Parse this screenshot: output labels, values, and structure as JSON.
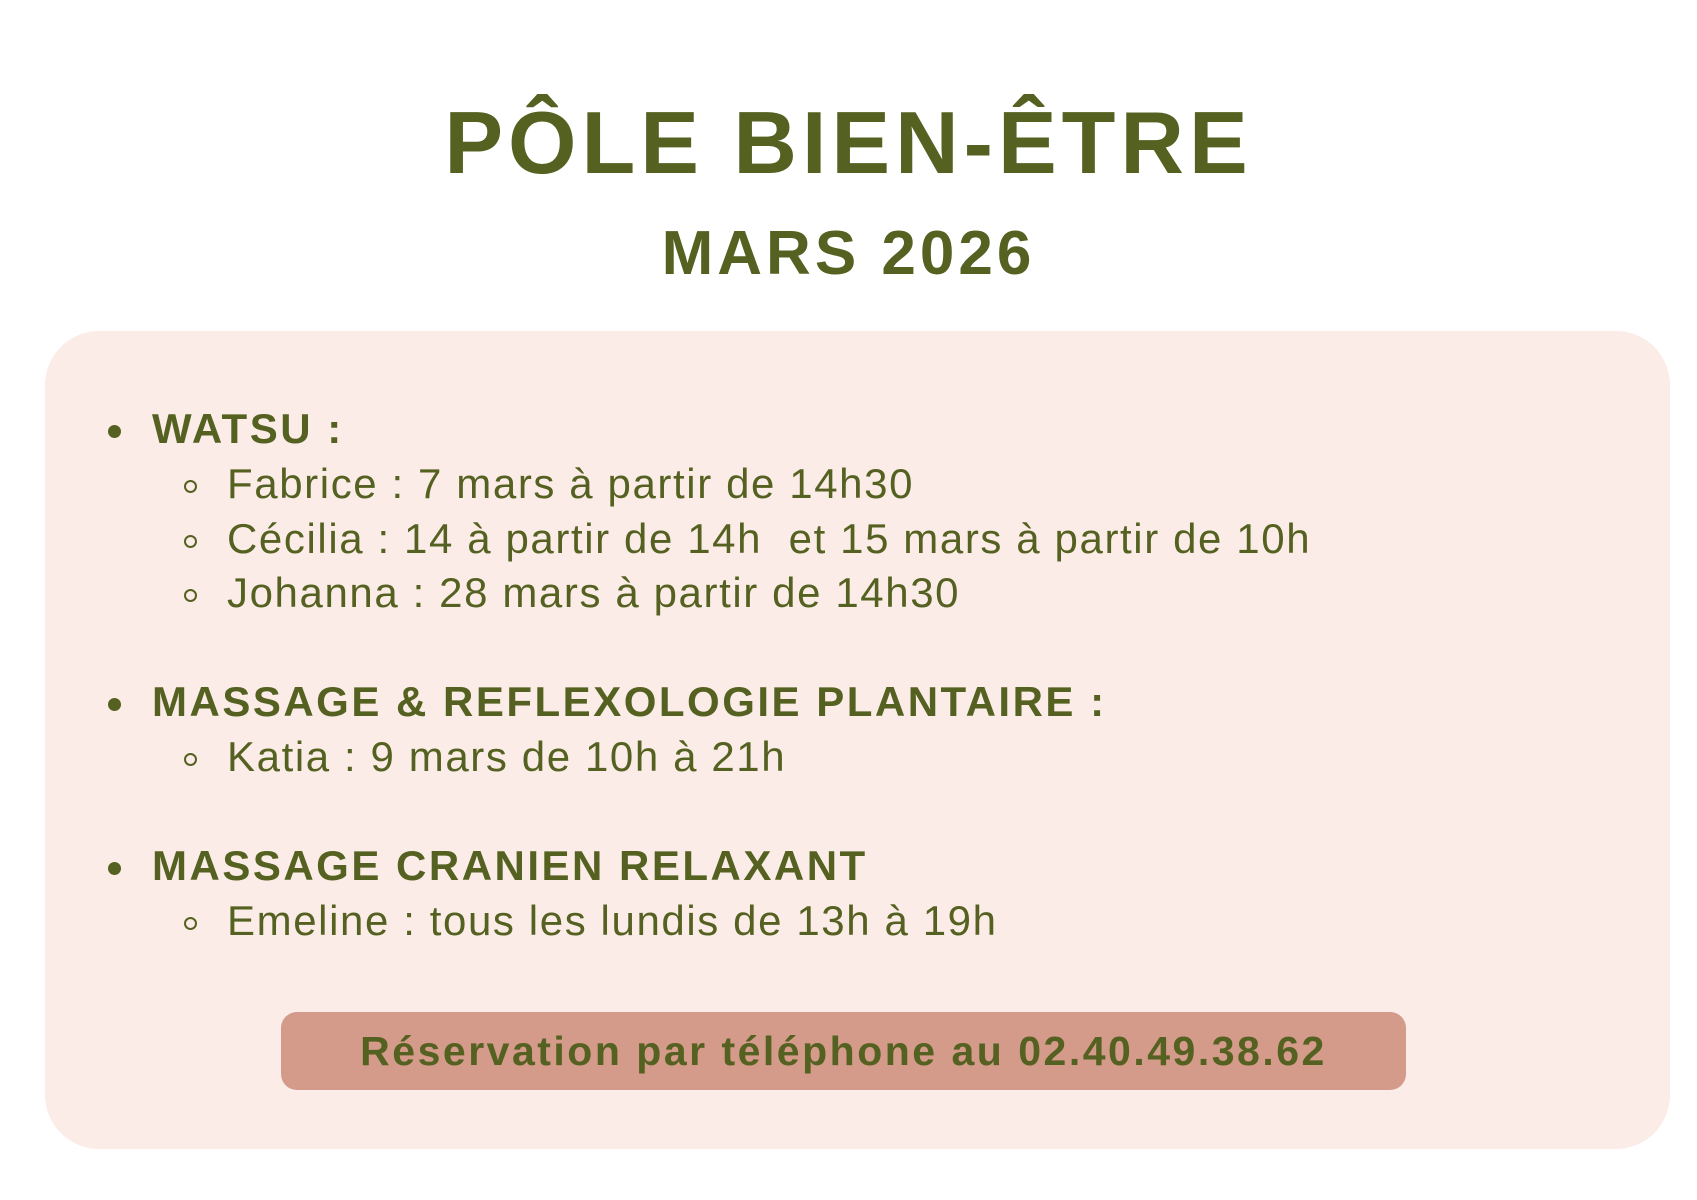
{
  "header": {
    "title": "PÔLE BIEN-ÊTRE",
    "subtitle": "MARS 2026"
  },
  "colors": {
    "text": "#556121",
    "panel": "#fbece7",
    "button": "#d49a8a"
  },
  "sections": [
    {
      "heading": "WATSU :",
      "items": [
        "Fabrice : 7 mars à partir de 14h30",
        "Cécilia : 14 à partir de 14h  et 15 mars à partir de 10h",
        "Johanna : 28 mars à partir de 14h30"
      ]
    },
    {
      "heading": "MASSAGE & REFLEXOLOGIE PLANTAIRE :",
      "items": [
        "Katia : 9 mars de 10h à 21h"
      ]
    },
    {
      "heading": "MASSAGE CRANIEN RELAXANT",
      "items": [
        "Emeline : tous les lundis de 13h à 19h"
      ]
    }
  ],
  "reservation": {
    "label": "Réservation par téléphone au 02.40.49.38.62"
  }
}
